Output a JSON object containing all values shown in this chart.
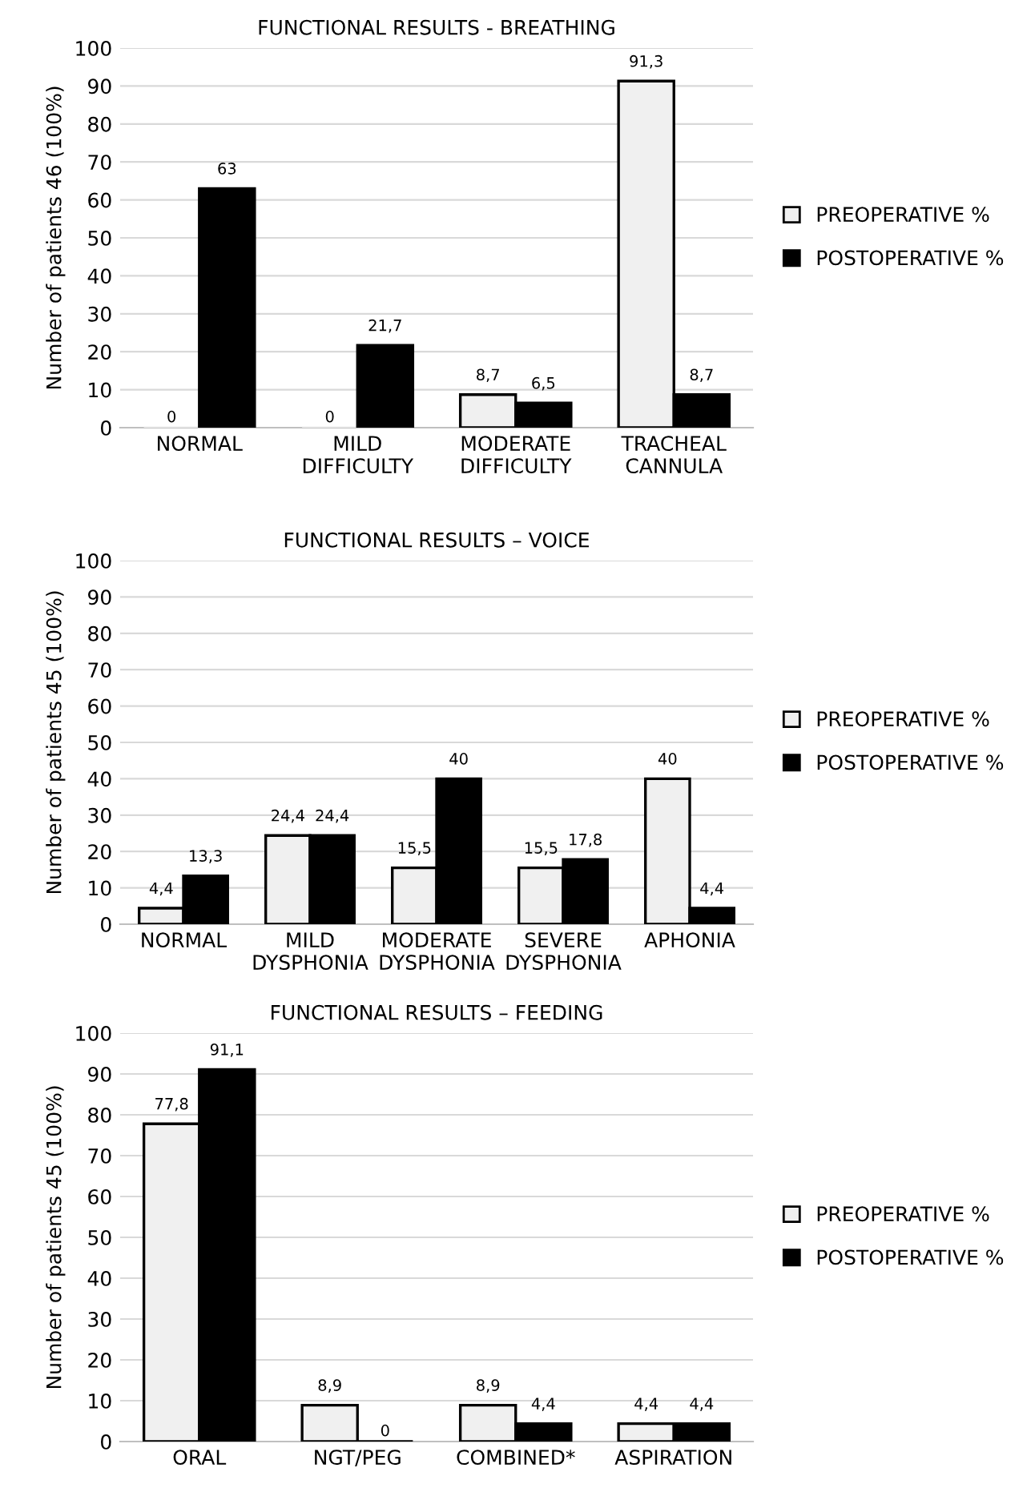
{
  "chart_data": [
    {
      "type": "bar",
      "title": "FUNCTIONAL RESULTS - BREATHING",
      "ylabel": "Number of patients 46 (100%)",
      "categories": [
        "NORMAL",
        "MILD\nDIFFICULTY",
        "MODERATE\nDIFFICULTY",
        "TRACHEAL\nCANNULA"
      ],
      "ylim": [
        0,
        100
      ],
      "yticks": [
        0,
        10,
        20,
        30,
        40,
        50,
        60,
        70,
        80,
        90,
        100
      ],
      "grid": "y",
      "legend": "right",
      "series": [
        {
          "name": "PREOPERATIVE %",
          "color": "#f0f0f0",
          "values": [
            0,
            0,
            8.7,
            91.3
          ],
          "value_labels": [
            "0",
            "0",
            "8,7",
            "91,3"
          ]
        },
        {
          "name": "POSTOPERATIVE %",
          "color": "#000000",
          "values": [
            63,
            21.7,
            6.5,
            8.7
          ],
          "value_labels": [
            "63",
            "21,7",
            "6,5",
            "8,7"
          ]
        }
      ]
    },
    {
      "type": "bar",
      "title": "FUNCTIONAL RESULTS – VOICE",
      "ylabel": "Number of patients 45 (100%)",
      "categories": [
        "NORMAL",
        "MILD\nDYSPHONIA",
        "MODERATE\nDYSPHONIA",
        "SEVERE\nDYSPHONIA",
        "APHONIA"
      ],
      "ylim": [
        0,
        100
      ],
      "yticks": [
        0,
        10,
        20,
        30,
        40,
        50,
        60,
        70,
        80,
        90,
        100
      ],
      "grid": "y",
      "legend": "right",
      "series": [
        {
          "name": "PREOPERATIVE %",
          "color": "#f0f0f0",
          "values": [
            4.4,
            24.4,
            15.5,
            15.5,
            40
          ],
          "value_labels": [
            "4,4",
            "24,4",
            "15,5",
            "15,5",
            "40"
          ]
        },
        {
          "name": "POSTOPERATIVE %",
          "color": "#000000",
          "values": [
            13.3,
            24.4,
            40,
            17.8,
            4.4
          ],
          "value_labels": [
            "13,3",
            "24,4",
            "40",
            "17,8",
            "4,4"
          ]
        }
      ]
    },
    {
      "type": "bar",
      "title": "FUNCTIONAL RESULTS – FEEDING",
      "ylabel": "Number of patients 45 (100%)",
      "categories": [
        "ORAL",
        "NGT/PEG",
        "COMBINED*",
        "ASPIRATION"
      ],
      "ylim": [
        0,
        100
      ],
      "yticks": [
        0,
        10,
        20,
        30,
        40,
        50,
        60,
        70,
        80,
        90,
        100
      ],
      "grid": "y",
      "legend": "right",
      "series": [
        {
          "name": "PREOPERATIVE %",
          "color": "#f0f0f0",
          "values": [
            77.8,
            8.9,
            8.9,
            4.4
          ],
          "value_labels": [
            "77,8",
            "8,9",
            "8,9",
            "4,4"
          ]
        },
        {
          "name": "POSTOPERATIVE %",
          "color": "#000000",
          "values": [
            91.1,
            0,
            4.4,
            4.4
          ],
          "value_labels": [
            "91,1",
            "0",
            "4,4",
            "4,4"
          ]
        }
      ]
    }
  ]
}
